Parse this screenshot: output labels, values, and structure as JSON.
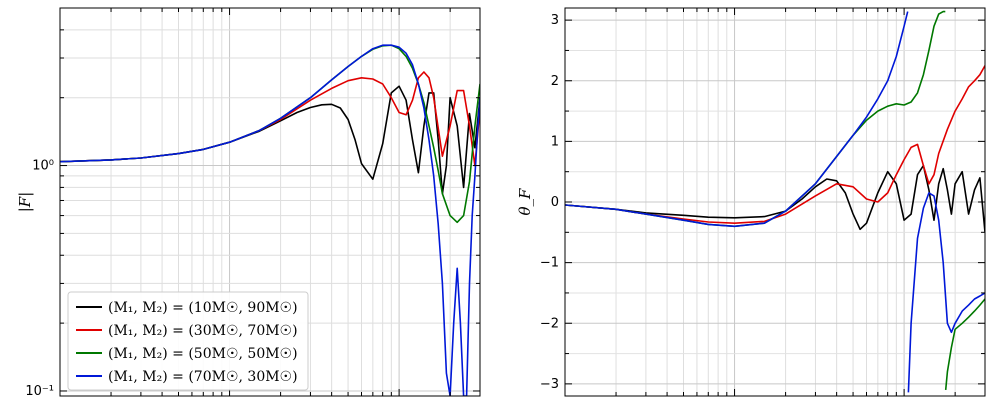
{
  "chart_data": [
    {
      "type": "line",
      "panel": "left",
      "ylabel": "|F|",
      "yscale": "log",
      "xscale": "log",
      "ylim": [
        0.095,
        5.0
      ],
      "xlim": [
        0.01,
        3.0
      ],
      "yticks": [
        {
          "value": 1.0,
          "label": "10⁰"
        },
        {
          "value": 0.1,
          "label": "10⁻¹"
        }
      ],
      "grid": true,
      "legend": "lower-left",
      "series": [
        {
          "name": "(M₁, M₂) = (10M☉, 90M☉)",
          "color": "#000000",
          "x": [
            0.01,
            0.02,
            0.03,
            0.05,
            0.07,
            0.1,
            0.15,
            0.2,
            0.25,
            0.3,
            0.35,
            0.4,
            0.45,
            0.5,
            0.55,
            0.6,
            0.7,
            0.8,
            0.9,
            1.0,
            1.1,
            1.2,
            1.3,
            1.4,
            1.5,
            1.6,
            1.7,
            1.8,
            1.9,
            2.0,
            2.2,
            2.4,
            2.6,
            2.8,
            3.0
          ],
          "y": [
            1.04,
            1.06,
            1.08,
            1.13,
            1.18,
            1.27,
            1.42,
            1.58,
            1.72,
            1.81,
            1.86,
            1.87,
            1.8,
            1.6,
            1.3,
            1.02,
            0.87,
            1.25,
            2.1,
            2.25,
            1.95,
            1.3,
            0.93,
            1.5,
            2.1,
            2.1,
            1.3,
            0.75,
            1.0,
            2.0,
            1.5,
            0.8,
            1.7,
            1.2,
            2.0
          ]
        },
        {
          "name": "(M₁, M₂) = (30M☉, 70M☉)",
          "color": "#e00000",
          "x": [
            0.01,
            0.02,
            0.03,
            0.05,
            0.07,
            0.1,
            0.15,
            0.2,
            0.3,
            0.4,
            0.5,
            0.6,
            0.7,
            0.8,
            0.9,
            1.0,
            1.1,
            1.2,
            1.3,
            1.4,
            1.5,
            1.6,
            1.8,
            2.0,
            2.2,
            2.4,
            2.6,
            2.8,
            3.0
          ],
          "y": [
            1.04,
            1.06,
            1.08,
            1.13,
            1.18,
            1.27,
            1.43,
            1.6,
            1.95,
            2.2,
            2.38,
            2.45,
            2.42,
            2.3,
            2.0,
            1.72,
            1.68,
            1.95,
            2.45,
            2.6,
            2.45,
            2.0,
            1.1,
            1.5,
            2.15,
            2.15,
            1.5,
            1.0,
            1.8
          ]
        },
        {
          "name": "(M₁, M₂) = (50M☉, 50M☉)",
          "color": "#007800",
          "x": [
            0.01,
            0.02,
            0.03,
            0.05,
            0.07,
            0.1,
            0.15,
            0.2,
            0.3,
            0.4,
            0.5,
            0.6,
            0.7,
            0.8,
            0.9,
            1.0,
            1.1,
            1.2,
            1.3,
            1.4,
            1.5,
            1.6,
            1.7,
            1.8,
            2.0,
            2.2,
            2.4,
            2.6,
            2.8,
            3.0
          ],
          "y": [
            1.04,
            1.06,
            1.08,
            1.13,
            1.18,
            1.27,
            1.43,
            1.62,
            2.0,
            2.4,
            2.75,
            3.05,
            3.28,
            3.4,
            3.42,
            3.3,
            3.05,
            2.7,
            2.3,
            1.9,
            1.5,
            1.2,
            0.95,
            0.75,
            0.6,
            0.56,
            0.6,
            0.85,
            1.5,
            2.3
          ]
        },
        {
          "name": "(M₁, M₂) = (70M☉, 30M☉)",
          "color": "#0018d8",
          "x": [
            0.01,
            0.02,
            0.03,
            0.05,
            0.07,
            0.1,
            0.15,
            0.2,
            0.3,
            0.4,
            0.5,
            0.6,
            0.7,
            0.8,
            0.9,
            1.0,
            1.1,
            1.2,
            1.3,
            1.4,
            1.5,
            1.6,
            1.7,
            1.8,
            1.9,
            2.0,
            2.1,
            2.2,
            2.3,
            2.4,
            2.5,
            2.6,
            2.7,
            2.8,
            2.9,
            3.0
          ],
          "y": [
            1.04,
            1.06,
            1.08,
            1.13,
            1.18,
            1.27,
            1.43,
            1.62,
            2.0,
            2.4,
            2.75,
            3.05,
            3.3,
            3.42,
            3.42,
            3.35,
            3.15,
            2.8,
            2.3,
            1.8,
            1.3,
            0.9,
            0.55,
            0.3,
            0.12,
            0.095,
            0.2,
            0.35,
            0.2,
            0.095,
            0.095,
            0.3,
            0.6,
            0.9,
            1.4,
            2.0
          ]
        }
      ]
    },
    {
      "type": "line",
      "panel": "right",
      "ylabel": "θ_F",
      "xscale": "log",
      "ylim": [
        -3.2,
        3.2
      ],
      "xlim": [
        0.01,
        3.0
      ],
      "yticks": [
        {
          "value": 3,
          "label": "3"
        },
        {
          "value": 2,
          "label": "2"
        },
        {
          "value": 1,
          "label": "1"
        },
        {
          "value": 0,
          "label": "0"
        },
        {
          "value": -1,
          "label": "−1"
        },
        {
          "value": -2,
          "label": "−2"
        },
        {
          "value": -3,
          "label": "−3"
        }
      ],
      "grid": true,
      "series": [
        {
          "name": "(M₁, M₂) = (10M☉, 90M☉)",
          "color": "#000000",
          "x": [
            0.01,
            0.02,
            0.03,
            0.05,
            0.07,
            0.1,
            0.15,
            0.2,
            0.25,
            0.3,
            0.35,
            0.4,
            0.45,
            0.5,
            0.55,
            0.6,
            0.7,
            0.8,
            0.9,
            1.0,
            1.1,
            1.2,
            1.3,
            1.4,
            1.5,
            1.6,
            1.7,
            1.8,
            1.9,
            2.0,
            2.2,
            2.4,
            2.6,
            2.8,
            3.0
          ],
          "y": [
            -0.05,
            -0.12,
            -0.18,
            -0.22,
            -0.25,
            -0.26,
            -0.24,
            -0.15,
            0.05,
            0.25,
            0.38,
            0.35,
            0.15,
            -0.2,
            -0.45,
            -0.35,
            0.15,
            0.5,
            0.3,
            -0.3,
            -0.2,
            0.45,
            0.6,
            0.2,
            -0.3,
            0.3,
            0.55,
            0.2,
            -0.2,
            0.3,
            0.5,
            -0.2,
            0.2,
            0.4,
            -0.5
          ]
        },
        {
          "name": "(M₁, M₂) = (30M☉, 70M☉)",
          "color": "#e00000",
          "x": [
            0.01,
            0.02,
            0.03,
            0.05,
            0.07,
            0.1,
            0.15,
            0.2,
            0.3,
            0.4,
            0.5,
            0.6,
            0.7,
            0.8,
            0.9,
            1.0,
            1.1,
            1.2,
            1.3,
            1.4,
            1.5,
            1.6,
            1.8,
            2.0,
            2.2,
            2.4,
            2.6,
            2.8,
            3.0
          ],
          "y": [
            -0.05,
            -0.12,
            -0.2,
            -0.28,
            -0.33,
            -0.35,
            -0.32,
            -0.2,
            0.1,
            0.3,
            0.25,
            0.05,
            0.0,
            0.15,
            0.45,
            0.7,
            0.9,
            0.95,
            0.6,
            0.3,
            0.45,
            0.8,
            1.2,
            1.5,
            1.7,
            1.9,
            2.0,
            2.1,
            2.25
          ]
        },
        {
          "name": "(M₁, M₂) = (50M☉, 50M☉)",
          "color": "#007800",
          "x": [
            0.01,
            0.02,
            0.03,
            0.05,
            0.07,
            0.1,
            0.15,
            0.2,
            0.3,
            0.4,
            0.5,
            0.6,
            0.7,
            0.8,
            0.9,
            1.0,
            1.1,
            1.2,
            1.3,
            1.4,
            1.5,
            1.6,
            1.7,
            1.75,
            1.76,
            1.8,
            1.9,
            2.0,
            2.2,
            2.4,
            2.6,
            2.8,
            3.0
          ],
          "y": [
            -0.05,
            -0.12,
            -0.2,
            -0.3,
            -0.37,
            -0.4,
            -0.35,
            -0.15,
            0.3,
            0.75,
            1.1,
            1.35,
            1.5,
            1.58,
            1.62,
            1.6,
            1.65,
            1.8,
            2.1,
            2.5,
            2.9,
            3.1,
            3.14,
            3.14,
            -3.1,
            -2.8,
            -2.4,
            -2.1,
            -2.0,
            -1.9,
            -1.8,
            -1.7,
            -1.6
          ]
        },
        {
          "name": "(M₁, M₂) = (70M☉, 30M☉)",
          "color": "#0018d8",
          "x": [
            0.01,
            0.02,
            0.03,
            0.05,
            0.07,
            0.1,
            0.15,
            0.2,
            0.3,
            0.4,
            0.5,
            0.6,
            0.7,
            0.8,
            0.9,
            1.0,
            1.05,
            1.06,
            1.1,
            1.2,
            1.3,
            1.4,
            1.5,
            1.6,
            1.7,
            1.8,
            1.9,
            2.0,
            2.2,
            2.4,
            2.6,
            2.8,
            3.0
          ],
          "y": [
            -0.05,
            -0.12,
            -0.2,
            -0.3,
            -0.37,
            -0.4,
            -0.35,
            -0.15,
            0.3,
            0.75,
            1.1,
            1.4,
            1.7,
            2.0,
            2.4,
            2.9,
            3.14,
            -3.14,
            -2.0,
            -0.6,
            -0.1,
            0.15,
            0.1,
            -0.3,
            -1.0,
            -2.0,
            -2.15,
            -2.0,
            -1.8,
            -1.7,
            -1.6,
            -1.55,
            -1.5
          ]
        }
      ]
    }
  ]
}
